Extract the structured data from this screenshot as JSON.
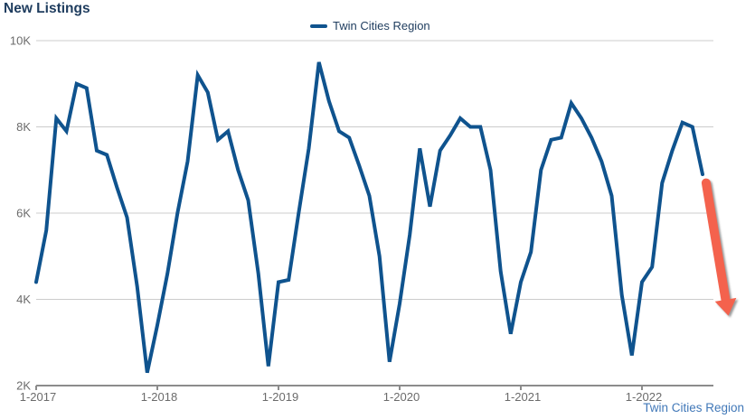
{
  "title": "New Listings",
  "legend": {
    "label": "Twin Cities Region",
    "swatch_color": "#0f538e"
  },
  "footer": {
    "label": "Twin Cities Region"
  },
  "colors": {
    "series_line": "#0f538e",
    "title_text": "#1e3c5e",
    "axis_text": "#6b6b6b",
    "gridline": "#cccccc",
    "axis_line": "#8c8c8c",
    "arrow": "#f4624d",
    "footer_link": "#4178b8"
  },
  "chart_data": {
    "type": "line",
    "title": "New Listings",
    "x_interval": "monthly",
    "x_start_label": "1-2017",
    "x_tick_labels": [
      "1-2017",
      "1-2018",
      "1-2019",
      "1-2020",
      "1-2021",
      "1-2022"
    ],
    "x_tick_month_indices": [
      0,
      12,
      24,
      36,
      48,
      60
    ],
    "y_ticks": [
      2,
      4,
      6,
      8,
      10
    ],
    "y_tick_labels": [
      "2K",
      "4K",
      "6K",
      "8K",
      "10K"
    ],
    "ylim": [
      2,
      10
    ],
    "values_unit": "thousands of listings",
    "grid": "horizontal",
    "legend_position": "top-center",
    "series": [
      {
        "name": "Twin Cities Region",
        "color": "#0f538e",
        "values": [
          4.4,
          5.6,
          8.2,
          7.9,
          9.0,
          8.9,
          7.45,
          7.35,
          6.6,
          5.9,
          4.3,
          2.3,
          3.4,
          4.6,
          6.0,
          7.2,
          9.2,
          8.8,
          7.7,
          7.9,
          7.0,
          6.3,
          4.6,
          2.45,
          4.4,
          4.45,
          6.0,
          7.5,
          9.5,
          8.6,
          7.9,
          7.75,
          7.1,
          6.4,
          5.0,
          2.55,
          3.9,
          5.5,
          7.5,
          6.15,
          7.45,
          7.8,
          8.2,
          8.0,
          8.0,
          7.0,
          4.65,
          3.2,
          4.4,
          5.1,
          7.0,
          7.7,
          7.75,
          8.55,
          8.2,
          7.75,
          7.2,
          6.4,
          4.1,
          2.7,
          4.4,
          4.75,
          6.7,
          7.45,
          8.1,
          8.0,
          6.9
        ]
      }
    ],
    "annotation": {
      "type": "arrow",
      "description": "red arrow pointing down-right after last data point",
      "color": "#f4624d",
      "from_month": 66.35,
      "from_value": 6.7,
      "to_month": 68.55,
      "to_value": 3.62
    }
  }
}
